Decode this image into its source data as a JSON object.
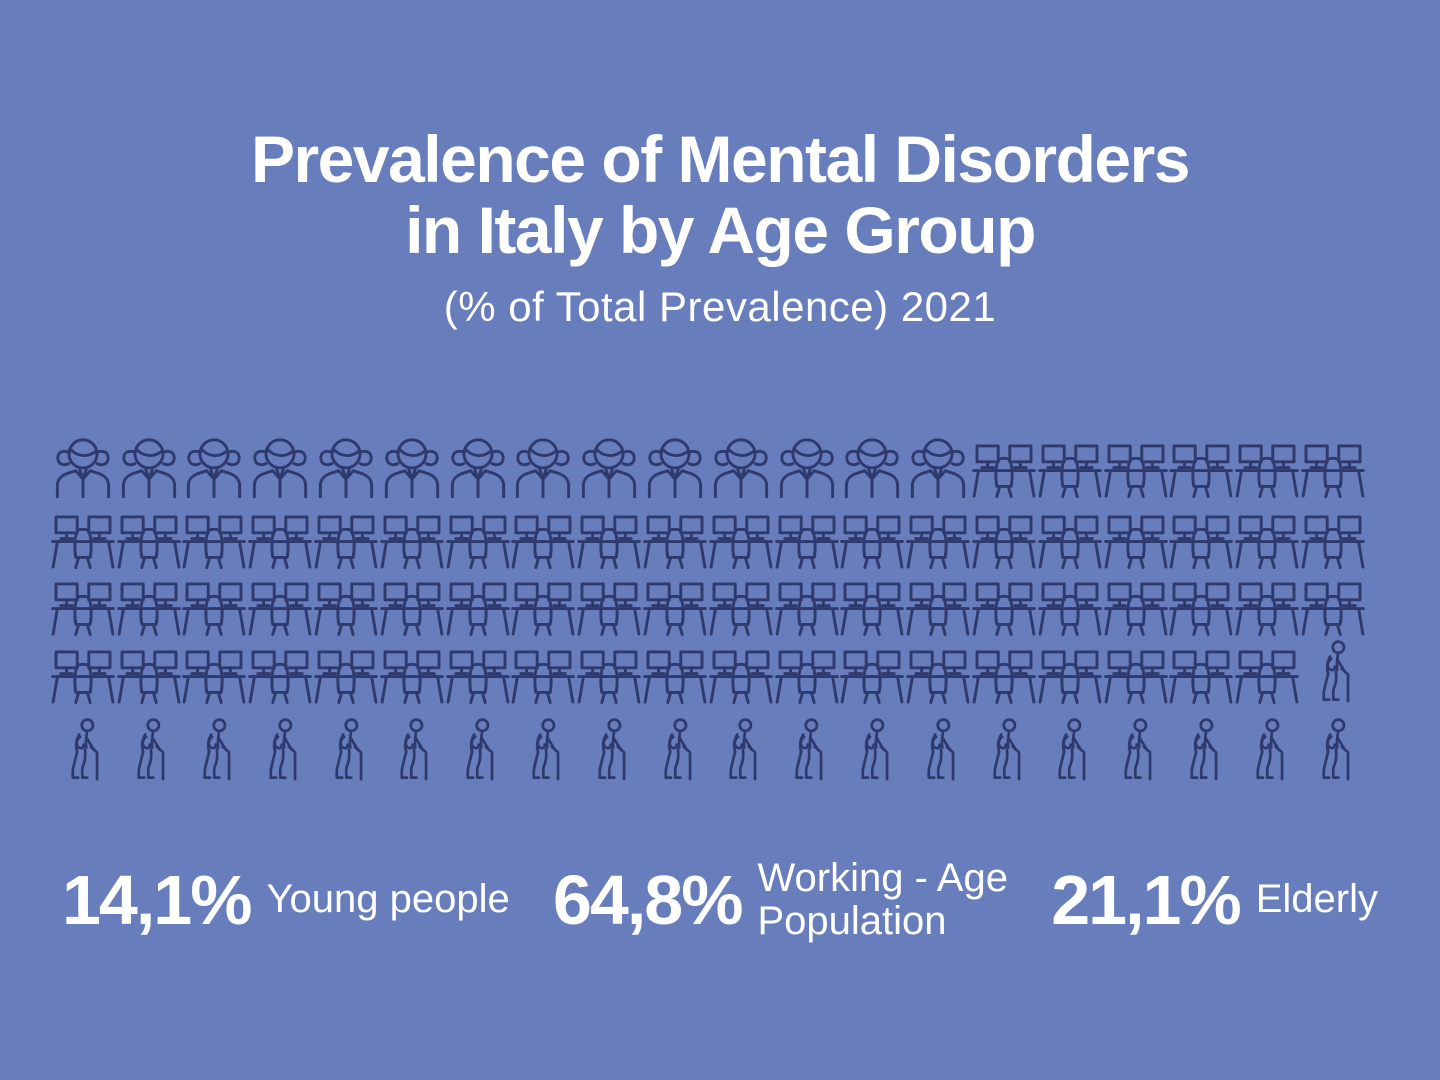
{
  "theme": {
    "background": "#687DBC",
    "icon_color": "#2E3A6E",
    "text_color": "#FFFFFF"
  },
  "header": {
    "title_line1": "Prevalence of Mental Disorders",
    "title_line2": "in Italy by Age Group",
    "subtitle": "(% of Total Prevalence) 2021"
  },
  "chart_data": {
    "type": "pictograph",
    "title": "Prevalence of Mental Disorders in Italy by Age Group",
    "subtitle": "(% of Total Prevalence) 2021",
    "year": "2021",
    "icons_per_row": 20,
    "rows": 5,
    "total_icons": 100,
    "percent_per_icon": 1,
    "categories": [
      "Young people",
      "Working - Age Population",
      "Elderly"
    ],
    "values": [
      14.1,
      64.8,
      21.1
    ],
    "value_labels": [
      "14,1%",
      "64,8%",
      "21,1%"
    ],
    "icon_counts": [
      14,
      65,
      21
    ],
    "icon_types": [
      "girl",
      "desk",
      "elderly"
    ],
    "icon_names": [
      "young-girl-icon",
      "office-desk-worker-icon",
      "elderly-cane-icon"
    ]
  },
  "stats": [
    {
      "value": "14,1%",
      "label_lines": [
        "Young people"
      ]
    },
    {
      "value": "64,8%",
      "label_lines": [
        "Working - Age",
        "Population"
      ]
    },
    {
      "value": "21,1%",
      "label_lines": [
        "Elderly"
      ]
    }
  ]
}
